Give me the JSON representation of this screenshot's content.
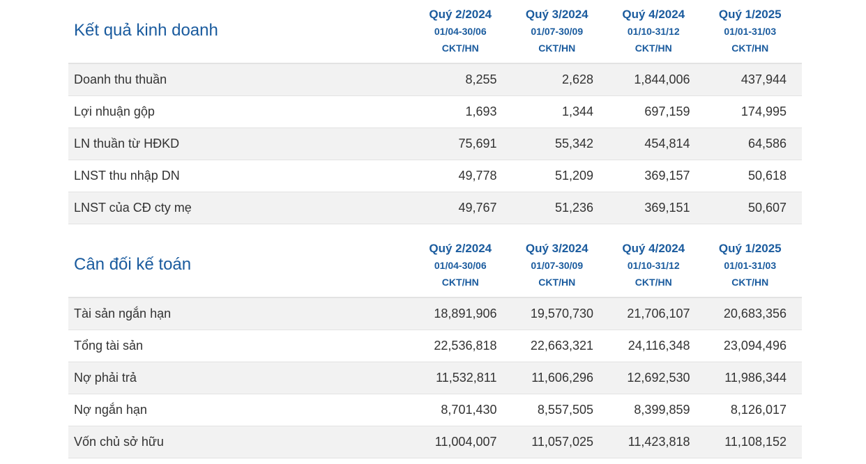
{
  "columns": [
    {
      "quarter": "Quý 2/2024",
      "dates": "01/04-30/06",
      "type": "CKT/HN"
    },
    {
      "quarter": "Quý 3/2024",
      "dates": "01/07-30/09",
      "type": "CKT/HN"
    },
    {
      "quarter": "Quý 4/2024",
      "dates": "01/10-31/12",
      "type": "CKT/HN"
    },
    {
      "quarter": "Quý 1/2025",
      "dates": "01/01-31/03",
      "type": "CKT/HN"
    }
  ],
  "income": {
    "title": "Kết quả kinh doanh",
    "rows": [
      {
        "label": "Doanh thu thuần",
        "values": [
          "8,255",
          "2,628",
          "1,844,006",
          "437,944"
        ]
      },
      {
        "label": "Lợi nhuận gộp",
        "values": [
          "1,693",
          "1,344",
          "697,159",
          "174,995"
        ]
      },
      {
        "label": "LN thuần từ HĐKD",
        "values": [
          "75,691",
          "55,342",
          "454,814",
          "64,586"
        ]
      },
      {
        "label": "LNST thu nhập DN",
        "values": [
          "49,778",
          "51,209",
          "369,157",
          "50,618"
        ]
      },
      {
        "label": "LNST của CĐ cty mẹ",
        "values": [
          "49,767",
          "51,236",
          "369,151",
          "50,607"
        ]
      }
    ]
  },
  "balance": {
    "title": "Cân đối kế toán",
    "rows": [
      {
        "label": "Tài sản ngắn hạn",
        "values": [
          "18,891,906",
          "19,570,730",
          "21,706,107",
          "20,683,356"
        ]
      },
      {
        "label": "Tổng tài sản",
        "values": [
          "22,536,818",
          "22,663,321",
          "24,116,348",
          "23,094,496"
        ]
      },
      {
        "label": "Nợ phải trả",
        "values": [
          "11,532,811",
          "11,606,296",
          "12,692,530",
          "11,986,344"
        ]
      },
      {
        "label": "Nợ ngắn hạn",
        "values": [
          "8,701,430",
          "8,557,505",
          "8,399,859",
          "8,126,017"
        ]
      },
      {
        "label": "Vốn chủ sở hữu",
        "values": [
          "11,004,007",
          "11,057,025",
          "11,423,818",
          "11,108,152"
        ]
      }
    ]
  },
  "colors": {
    "accent": "#1a5b9e",
    "row_shade": "#f2f2f2",
    "divider": "#e2e2e2",
    "text": "#333333"
  }
}
